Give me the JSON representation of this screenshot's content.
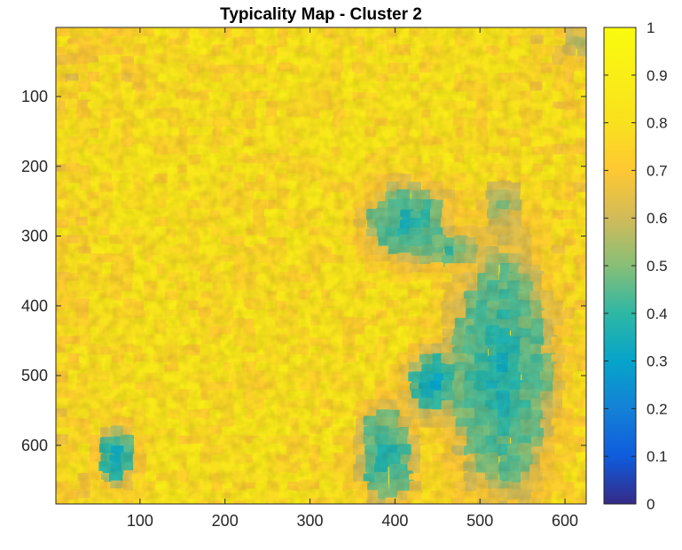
{
  "chart_data": {
    "type": "heatmap",
    "title": "Typicality Map - Cluster 2",
    "xlabel": "",
    "ylabel": "",
    "xlim": [
      1,
      625
    ],
    "ylim": [
      1,
      684
    ],
    "y_reversed": true,
    "x_ticks": [
      100,
      200,
      300,
      400,
      500,
      600
    ],
    "y_ticks": [
      100,
      200,
      300,
      400,
      500,
      600
    ],
    "colorbar": {
      "colormap": "parula",
      "range": [
        0,
        1
      ],
      "ticks": [
        0,
        0.1,
        0.2,
        0.3,
        0.4,
        0.5,
        0.6,
        0.7,
        0.8,
        0.9,
        1
      ],
      "tick_labels": [
        "0",
        "0.1",
        "0.2",
        "0.3",
        "0.4",
        "0.5",
        "0.6",
        "0.7",
        "0.8",
        "0.9",
        "1"
      ],
      "stops": [
        {
          "value": 0.0,
          "color": "#352a87"
        },
        {
          "value": 0.1,
          "color": "#0f5cdd"
        },
        {
          "value": 0.2,
          "color": "#1481d6"
        },
        {
          "value": 0.3,
          "color": "#06a4ca"
        },
        {
          "value": 0.4,
          "color": "#2eb7a4"
        },
        {
          "value": 0.5,
          "color": "#87bf77"
        },
        {
          "value": 0.6,
          "color": "#d1bb59"
        },
        {
          "value": 0.7,
          "color": "#fec832"
        },
        {
          "value": 0.8,
          "color": "#f9e11e"
        },
        {
          "value": 1.0,
          "color": "#f9fb0e"
        }
      ]
    },
    "field": {
      "background_value": 0.8,
      "low_typicality_regions": [
        {
          "x": [
            370,
            460
          ],
          "y": [
            230,
            330
          ],
          "value": 0.35
        },
        {
          "x": [
            420,
            500
          ],
          "y": [
            300,
            340
          ],
          "value": 0.4
        },
        {
          "x": [
            470,
            580
          ],
          "y": [
            330,
            660
          ],
          "value": 0.35
        },
        {
          "x": [
            420,
            470
          ],
          "y": [
            470,
            550
          ],
          "value": 0.3
        },
        {
          "x": [
            360,
            420
          ],
          "y": [
            550,
            680
          ],
          "value": 0.35
        },
        {
          "x": [
            55,
            90
          ],
          "y": [
            580,
            650
          ],
          "value": 0.3
        },
        {
          "x": [
            500,
            550
          ],
          "y": [
            220,
            290
          ],
          "value": 0.5
        },
        {
          "x": [
            600,
            625
          ],
          "y": [
            1,
            40
          ],
          "value": 0.5
        }
      ]
    }
  }
}
